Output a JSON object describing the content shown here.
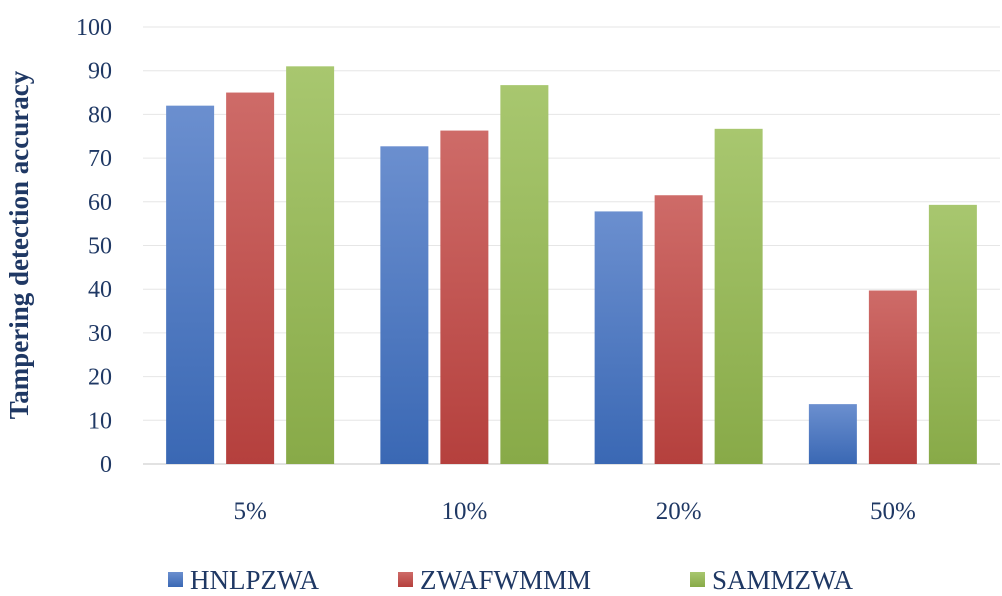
{
  "chart_data": {
    "type": "bar",
    "title": "",
    "xlabel": "",
    "ylabel": "Tampering detection accuracy",
    "ylim": [
      0,
      100
    ],
    "yticks": [
      0,
      10,
      20,
      30,
      40,
      50,
      60,
      70,
      80,
      90,
      100
    ],
    "grid": true,
    "legend_position": "bottom",
    "categories": [
      "5%",
      "10%",
      "20%",
      "50%"
    ],
    "series": [
      {
        "name": "HNLPZWA",
        "color": "#4472c4",
        "color_light": "#6b8fcf",
        "color_dark": "#3a68b4",
        "values": [
          82,
          72.7,
          57.8,
          13.7
        ]
      },
      {
        "name": "ZWAFWMMM",
        "color": "#c0504d",
        "color_light": "#ce6b68",
        "color_dark": "#b5403d",
        "values": [
          85,
          76.3,
          61.5,
          39.7
        ]
      },
      {
        "name": "SAMMZWA",
        "color": "#9bbb59",
        "color_light": "#a8c76f",
        "color_dark": "#88aa48",
        "values": [
          91,
          86.7,
          76.7,
          59.3
        ]
      }
    ]
  }
}
